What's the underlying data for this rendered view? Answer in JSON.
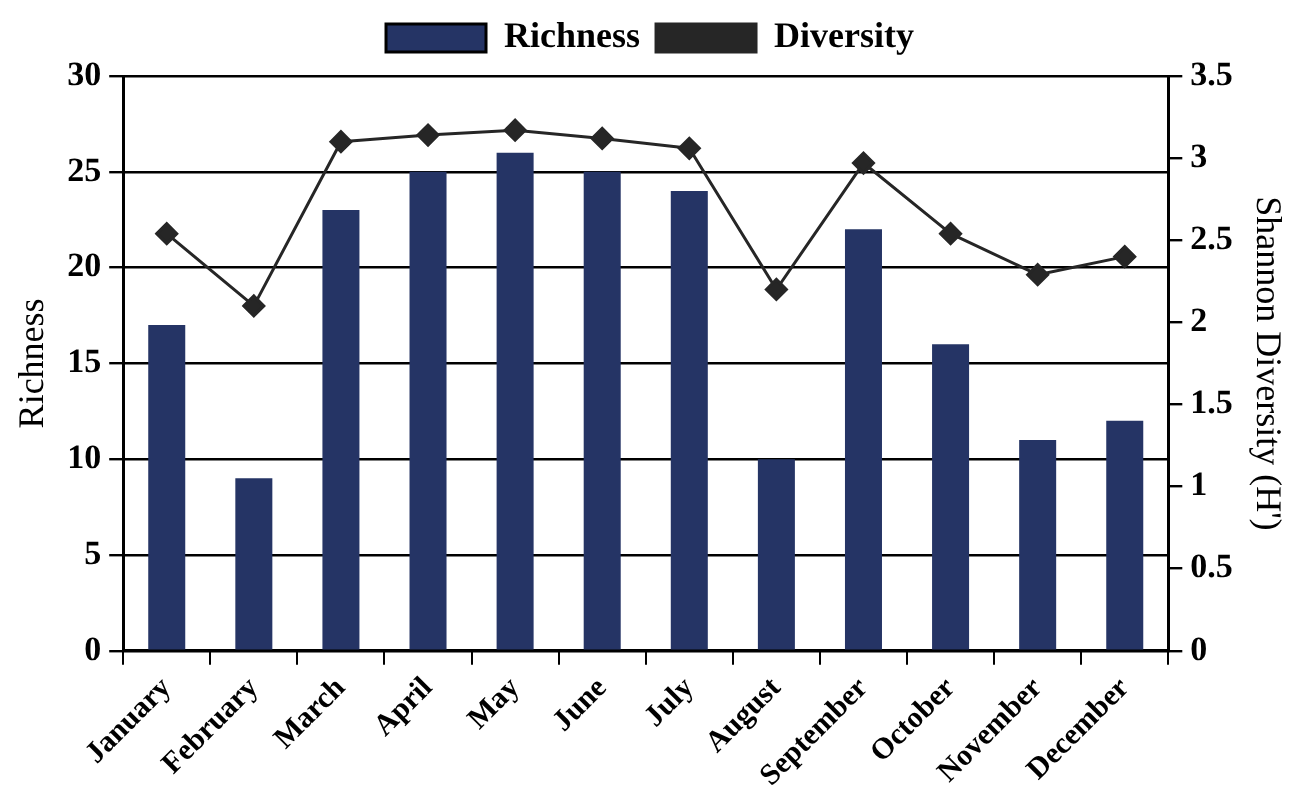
{
  "chart_data": {
    "type": "bar",
    "categories": [
      "January",
      "February",
      "March",
      "April",
      "May",
      "June",
      "July",
      "August",
      "September",
      "October",
      "November",
      "December"
    ],
    "series": [
      {
        "name": "Richness",
        "color": "#253465",
        "values": [
          17,
          9,
          23,
          25,
          26,
          25,
          24,
          10,
          22,
          16,
          11,
          12
        ]
      },
      {
        "name": "Diversity",
        "type": "line",
        "axis": "y2",
        "color": "#262626",
        "marker": "diamond",
        "values": [
          2.54,
          2.1,
          3.1,
          3.14,
          3.17,
          3.12,
          3.06,
          2.2,
          2.97,
          2.54,
          2.29,
          2.4
        ]
      }
    ],
    "ylabel": "Richness",
    "y2label": "Shannon Diversity (H')",
    "ylim": [
      0,
      30
    ],
    "yticks": [
      0,
      5,
      10,
      15,
      20,
      25,
      30
    ],
    "y2lim": [
      0,
      3.5
    ],
    "y2ticks": [
      0,
      0.5,
      1,
      1.5,
      2,
      2.5,
      3,
      3.5
    ],
    "grid": "y",
    "legend": "top"
  }
}
